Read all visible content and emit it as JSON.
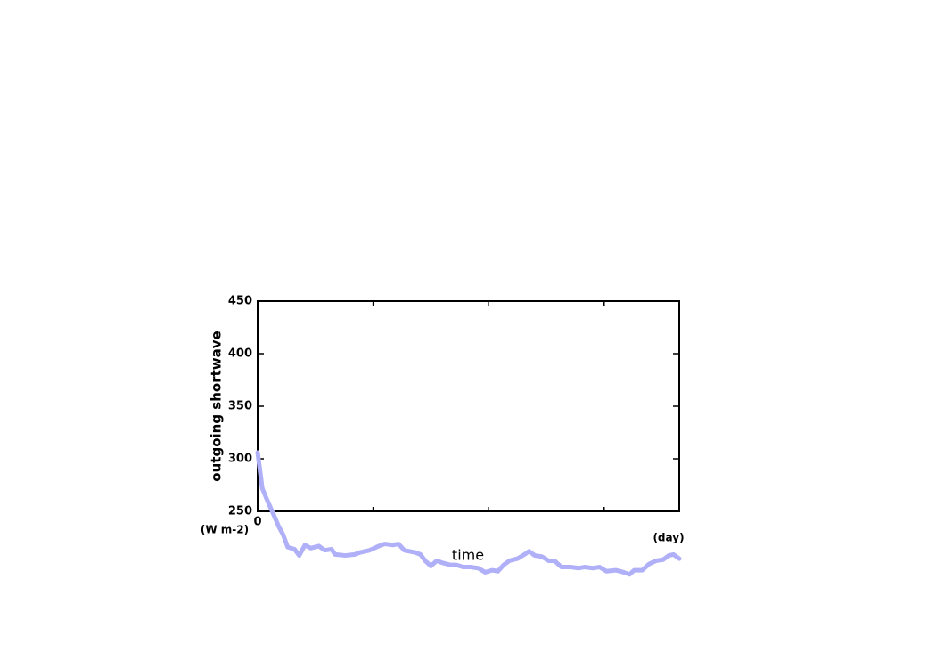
{
  "chart_data": {
    "type": "line",
    "ylabel": "outgoing shortwave",
    "yunit": "(W m-2)",
    "xlabel": "time",
    "xunit": "(day)",
    "xlim": [
      0,
      365
    ],
    "xticks": [
      0
    ],
    "xminor_ticks": [
      100,
      200,
      300
    ],
    "ylim": [
      250,
      450
    ],
    "yticks": [
      250,
      300,
      350,
      400,
      450
    ],
    "x": [
      0,
      4,
      8.5,
      13,
      18.5,
      22,
      26,
      32,
      36,
      41,
      46,
      53,
      58,
      64,
      67,
      76,
      84,
      89,
      97,
      105,
      110,
      117,
      122,
      127,
      136,
      141,
      145,
      150,
      155,
      160,
      167,
      172,
      178,
      184,
      191,
      197,
      203,
      208,
      213,
      218,
      225,
      231,
      235,
      240,
      246,
      252,
      257,
      263,
      271,
      278,
      283,
      290,
      296,
      302,
      310,
      317,
      322,
      326,
      333,
      339,
      345,
      351,
      356,
      360,
      365
    ],
    "series": [
      {
        "name": "outgoing shortwave",
        "color": "#b0b0f8",
        "values": [
          306,
          272,
          260,
          249,
          235,
          228,
          216,
          214,
          208,
          218,
          215,
          217,
          213,
          214,
          209,
          208,
          209,
          211,
          213,
          217,
          219,
          218,
          219,
          213,
          211,
          209,
          203,
          198,
          203,
          201,
          199,
          199,
          197,
          197,
          196,
          192,
          194,
          193,
          199,
          203,
          205,
          209,
          212,
          208,
          207,
          203,
          203,
          197,
          197,
          196,
          197,
          196,
          197,
          193,
          194,
          192,
          190,
          194,
          194,
          200,
          203,
          204,
          208,
          209,
          205
        ]
      }
    ]
  }
}
